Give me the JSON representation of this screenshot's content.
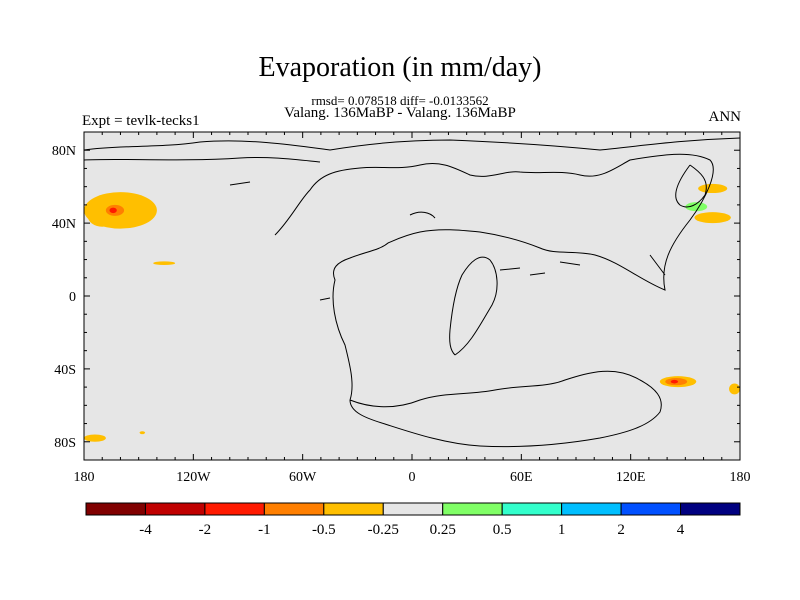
{
  "chart_data": {
    "type": "heatmap",
    "title": "Evaporation (in mm/day)",
    "stats_line": "rmsd= 0.078518 diff= -0.0133562",
    "comparison": "Valang. 136MaBP - Valang. 136MaBP",
    "experiment": "Expt = tevlk-tecks1",
    "period": "ANN",
    "x_axis": {
      "range": [
        -180,
        180
      ],
      "ticks": [
        "180",
        "120W",
        "60W",
        "0",
        "60E",
        "120E",
        "180"
      ],
      "tick_values": [
        -180,
        -120,
        -60,
        0,
        60,
        120,
        180
      ]
    },
    "y_axis": {
      "range": [
        -90,
        90
      ],
      "ticks": [
        "80N",
        "40N",
        "0",
        "40S",
        "80S"
      ],
      "tick_values": [
        80,
        40,
        0,
        -40,
        -80
      ]
    },
    "colorbar": {
      "colors": [
        "#800000",
        "#c00000",
        "#ff1a00",
        "#ff7f00",
        "#ffbf00",
        "#e6e6e6",
        "#80ff66",
        "#33ffcc",
        "#00bfff",
        "#0050ff",
        "#000080"
      ],
      "labels": [
        "-4",
        "-2",
        "-1",
        "-0.5",
        "-0.25",
        "0.25",
        "0.5",
        "1",
        "2",
        "4"
      ]
    },
    "anomalies": [
      {
        "lon": -160,
        "lat": 47,
        "level": "-0.25",
        "color": "#ffbf00",
        "rx": 20,
        "ry": 10
      },
      {
        "lon": -170,
        "lat": 44,
        "level": "-0.25",
        "color": "#ffbf00",
        "rx": 8,
        "ry": 6
      },
      {
        "lon": -163,
        "lat": 47,
        "level": "-0.5",
        "color": "#ff7f00",
        "rx": 5,
        "ry": 3
      },
      {
        "lon": -164,
        "lat": 47,
        "level": "-1",
        "color": "#ff1a00",
        "rx": 2,
        "ry": 1.5
      },
      {
        "lon": -136,
        "lat": 18,
        "level": "-0.25",
        "color": "#ffbf00",
        "rx": 6,
        "ry": 1
      },
      {
        "lon": -174,
        "lat": -78,
        "level": "-0.25",
        "color": "#ffbf00",
        "rx": 6,
        "ry": 2
      },
      {
        "lon": -148,
        "lat": -75,
        "level": "-0.25",
        "color": "#ffbf00",
        "rx": 1.5,
        "ry": 0.8
      },
      {
        "lon": 165,
        "lat": 59,
        "level": "-0.25",
        "color": "#ffbf00",
        "rx": 8,
        "ry": 2.5
      },
      {
        "lon": 165,
        "lat": 43,
        "level": "-0.25",
        "color": "#ffbf00",
        "rx": 10,
        "ry": 3
      },
      {
        "lon": 156,
        "lat": 49,
        "level": "0.25",
        "color": "#80ff66",
        "rx": 6,
        "ry": 2.5
      },
      {
        "lon": 146,
        "lat": -47,
        "level": "-0.25",
        "color": "#ffbf00",
        "rx": 10,
        "ry": 3
      },
      {
        "lon": 145,
        "lat": -47,
        "level": "-0.5",
        "color": "#ff7f00",
        "rx": 6,
        "ry": 2
      },
      {
        "lon": 144,
        "lat": -47,
        "level": "-1",
        "color": "#ff1a00",
        "rx": 2,
        "ry": 1
      },
      {
        "lon": 177,
        "lat": -51,
        "level": "-0.25",
        "color": "#ffbf00",
        "rx": 3,
        "ry": 3
      }
    ]
  }
}
